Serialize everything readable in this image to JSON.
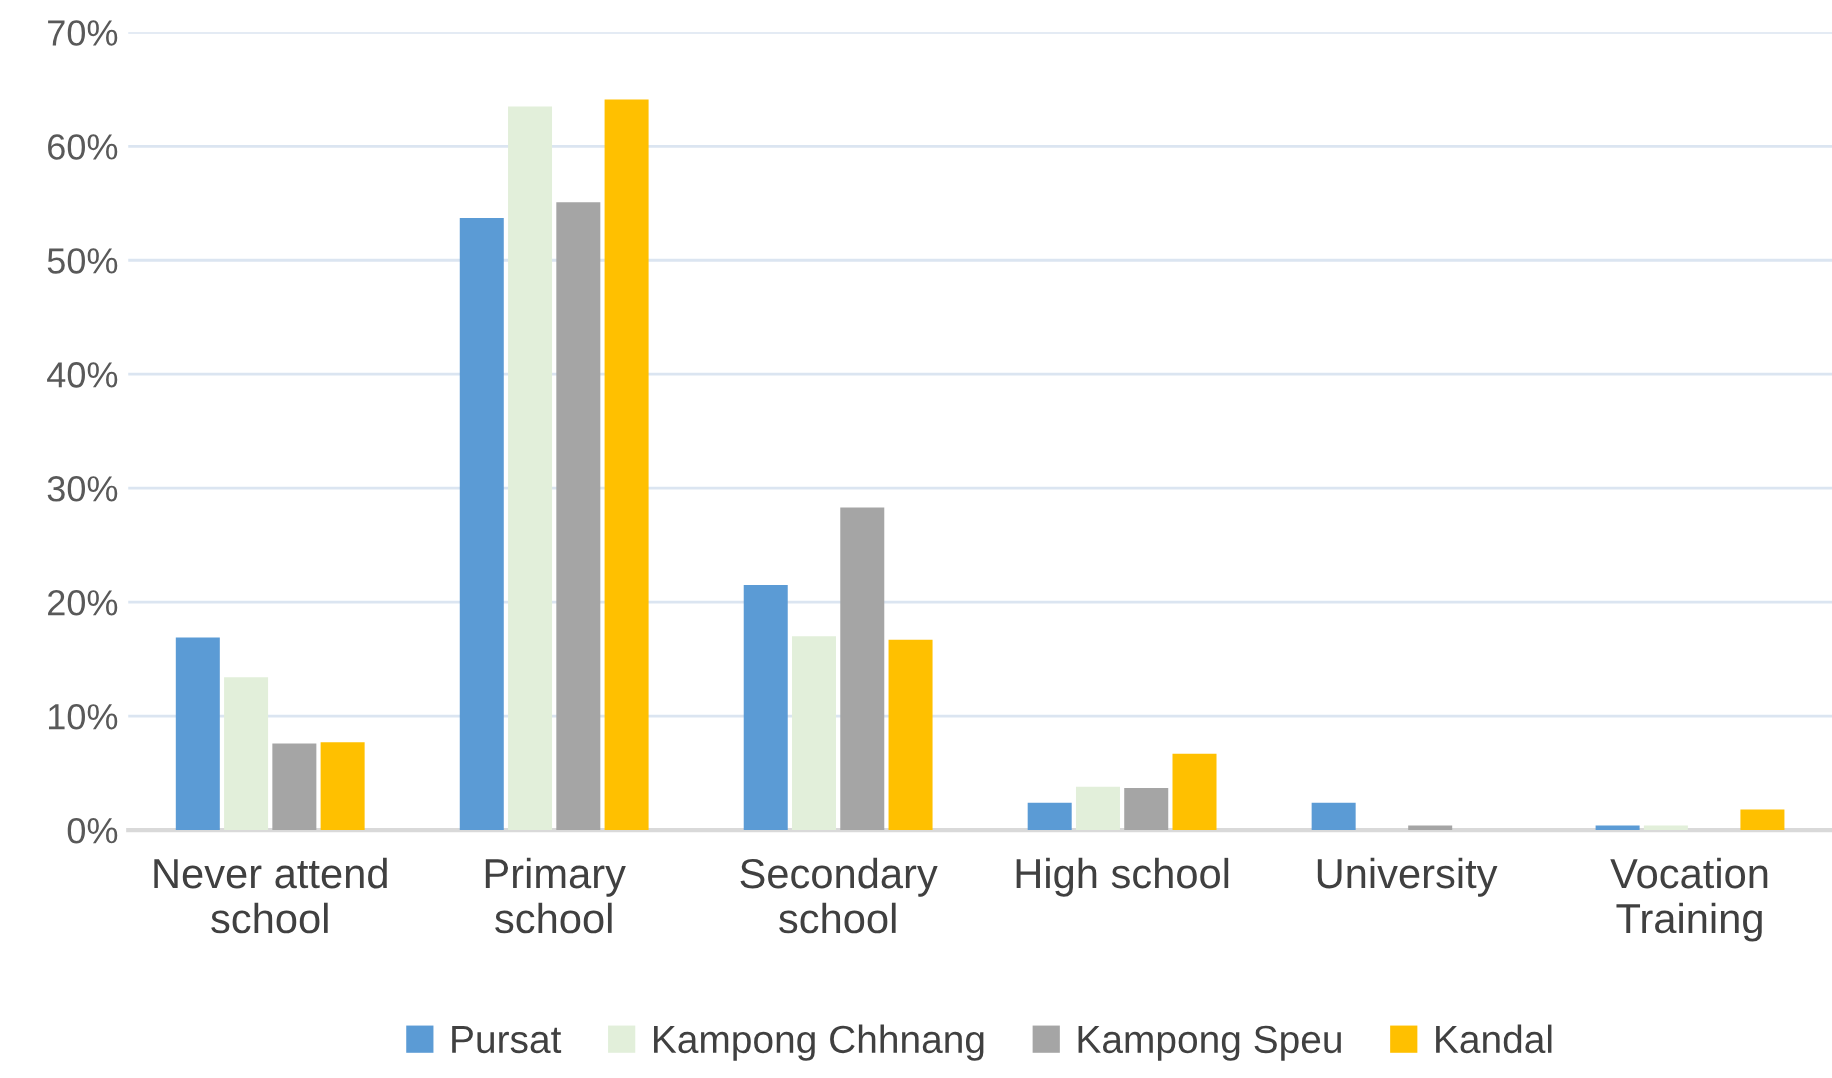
{
  "chart_data": {
    "type": "bar",
    "categories": [
      "Never attend\nschool",
      "Primary\nschool",
      "Secondary\nschool",
      "High school",
      "University",
      "Vocation\nTraining"
    ],
    "series": [
      {
        "name": "Pursat",
        "color": "#5b9bd5",
        "values": [
          16.9,
          53.7,
          21.5,
          2.4,
          2.4,
          0.4
        ]
      },
      {
        "name": "Kampong Chhnang",
        "color": "#e2efda",
        "values": [
          13.4,
          63.5,
          17.0,
          3.8,
          0,
          0.4
        ]
      },
      {
        "name": "Kampong Speu",
        "color": "#a5a5a5",
        "values": [
          7.6,
          55.1,
          28.3,
          3.7,
          0.4,
          0
        ]
      },
      {
        "name": "Kandal",
        "color": "#ffc000",
        "values": [
          7.7,
          64.1,
          16.7,
          6.7,
          0,
          1.8
        ]
      }
    ],
    "ylim": [
      0,
      70
    ],
    "yticks": [
      {
        "value": 0,
        "label": "0%"
      },
      {
        "value": 10,
        "label": "10%"
      },
      {
        "value": 20,
        "label": "20%"
      },
      {
        "value": 30,
        "label": "30%"
      },
      {
        "value": 40,
        "label": "40%"
      },
      {
        "value": 50,
        "label": "50%"
      },
      {
        "value": 60,
        "label": "60%"
      },
      {
        "value": 70,
        "label": "70%"
      }
    ],
    "grid": "y",
    "legend": "bottom"
  }
}
